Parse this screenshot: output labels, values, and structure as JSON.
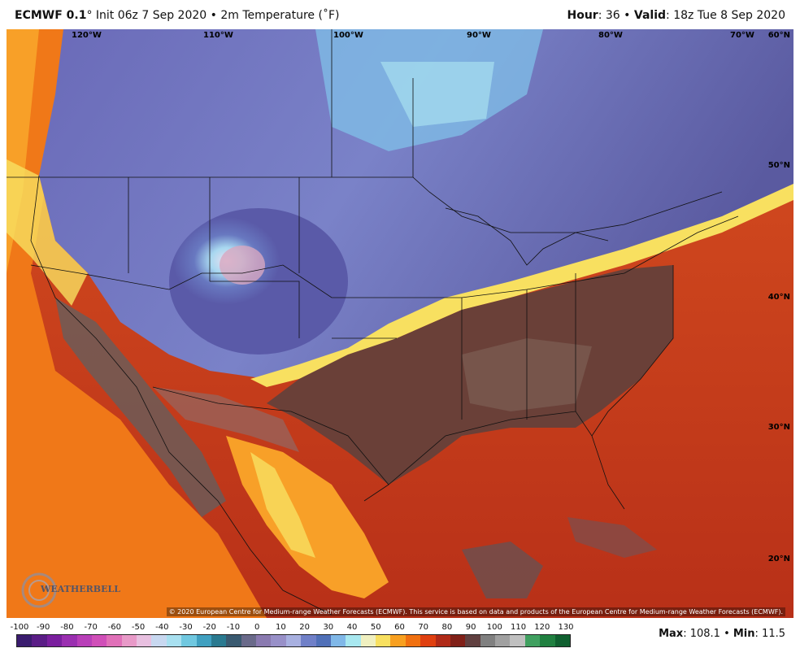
{
  "header": {
    "model": "ECMWF 0.1",
    "degree": "°",
    "init": "Init 06z 7 Sep 2020",
    "bullet": "•",
    "field": "2m Temperature (˚F)",
    "hour_label": "Hour",
    "hour": "36",
    "valid_label": "Valid",
    "valid": "18z Tue 8 Sep 2020"
  },
  "map": {
    "longitude_labels": [
      "120°W",
      "110°W",
      "100°W",
      "90°W",
      "80°W",
      "70°W"
    ],
    "latitude_labels": [
      "60°N",
      "50°N",
      "40°N",
      "30°N",
      "20°N"
    ],
    "copyright": "© 2020 European Centre for Medium-range Weather Forecasts (ECMWF). This service is based on data and products of the European Centre for Medium-range Weather Forecasts (ECMWF).",
    "logo_text": "WEATHERBELL"
  },
  "scale": {
    "ticks": [
      "-100",
      "-90",
      "-80",
      "-70",
      "-60",
      "-50",
      "-40",
      "-30",
      "-20",
      "-10",
      "0",
      "10",
      "20",
      "30",
      "40",
      "50",
      "60",
      "70",
      "80",
      "90",
      "100",
      "110",
      "120",
      "130"
    ],
    "colors": [
      "#3a1c6e",
      "#5a1d86",
      "#7a1f9e",
      "#9a2fb0",
      "#b83fb8",
      "#d04fb8",
      "#e070b8",
      "#e89ac8",
      "#e8c0e0",
      "#c8d8f0",
      "#a8e0f0",
      "#70c8e0",
      "#40a0c0",
      "#2a7a90",
      "#3a5a70",
      "#6a6a8a",
      "#8a7ab0",
      "#9890c8",
      "#a8b0e0",
      "#7080c8",
      "#5070b8",
      "#80b8e8",
      "#a8e8f0",
      "#f0f0c0",
      "#f8e060",
      "#f8a020",
      "#f07010",
      "#e04010",
      "#b02a18",
      "#802018",
      "#604040",
      "#808080",
      "#a0a0a0",
      "#c0c0c0",
      "#40a060",
      "#208040",
      "#106030"
    ]
  },
  "stats": {
    "max_label": "Max",
    "max": "108.1",
    "min_label": "Min",
    "min": "11.5",
    "bullet": "•"
  }
}
